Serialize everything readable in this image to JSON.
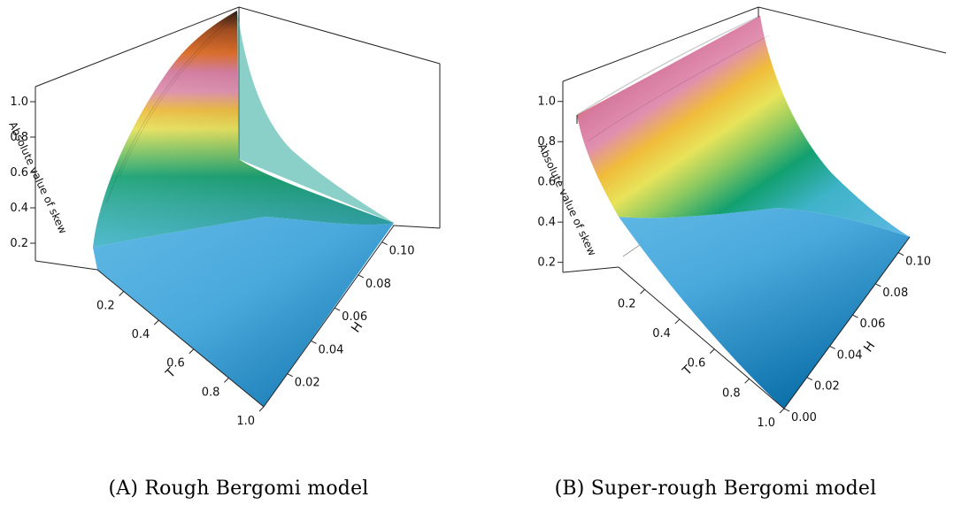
{
  "figure": {
    "panels": [
      {
        "tag": "(A)",
        "caption": "Rough Bergomi model"
      },
      {
        "tag": "(B)",
        "caption": "Super-rough Bergomi model"
      }
    ]
  },
  "chart_data": [
    {
      "type": "surface",
      "title": "",
      "zlabel": "Absolute value of skew",
      "xlabel": "T",
      "ylabel": "H",
      "x_ticks": [
        "0.2",
        "0.4",
        "0.6",
        "0.8",
        "1.0"
      ],
      "y_ticks": [
        "0.02",
        "0.04",
        "0.06",
        "0.08",
        "0.10"
      ],
      "z_ticks": [
        "0.2",
        "0.4",
        "0.6",
        "0.8",
        "1.0"
      ],
      "xlim": [
        0.05,
        1.0
      ],
      "ylim": [
        0.0,
        0.11
      ],
      "zlim": [
        0.15,
        1.1
      ],
      "surface": {
        "x": [
          0.05,
          0.2,
          0.4,
          0.6,
          0.8,
          1.0
        ],
        "y": [
          0.0,
          0.02,
          0.04,
          0.06,
          0.08,
          0.1
        ],
        "z_rows_by_H": [
          [
            1.05,
            0.55,
            0.38,
            0.3,
            0.26,
            0.24
          ],
          [
            0.92,
            0.5,
            0.36,
            0.29,
            0.25,
            0.23
          ],
          [
            0.82,
            0.46,
            0.34,
            0.28,
            0.25,
            0.23
          ],
          [
            0.72,
            0.43,
            0.33,
            0.28,
            0.24,
            0.23
          ],
          [
            0.64,
            0.4,
            0.32,
            0.27,
            0.24,
            0.22
          ],
          [
            0.56,
            0.37,
            0.3,
            0.26,
            0.23,
            0.22
          ]
        ]
      },
      "colors": [
        "#0a6ea8",
        "#3397d0",
        "#5fb8e4",
        "#3fb3c9",
        "#2aa89a",
        "#12a070",
        "#8fca60",
        "#e8e35a",
        "#f0bc3a",
        "#e08fb0",
        "#d77aa0",
        "#e06a20",
        "#a04414",
        "#231208"
      ]
    },
    {
      "type": "surface",
      "title": "",
      "zlabel": "Absolute value of skew",
      "xlabel": "T",
      "ylabel": "H",
      "x_ticks": [
        "0.2",
        "0.4",
        "0.6",
        "0.8",
        "1.0"
      ],
      "y_ticks": [
        "0.00",
        "0.02",
        "0.04",
        "0.06",
        "0.08",
        "0.10"
      ],
      "z_ticks": [
        "0.2",
        "0.4",
        "0.6",
        "0.8",
        "1.0"
      ],
      "xlim": [
        0.05,
        1.0
      ],
      "ylim": [
        0.0,
        0.11
      ],
      "zlim": [
        0.15,
        1.1
      ],
      "surface": {
        "x": [
          0.05,
          0.2,
          0.4,
          0.6,
          0.8,
          1.0
        ],
        "y": [
          0.0,
          0.02,
          0.04,
          0.06,
          0.08,
          0.1
        ],
        "z_rows_by_H": [
          [
            1.05,
            1.0,
            0.98,
            0.96,
            0.95,
            0.94
          ],
          [
            0.9,
            0.84,
            0.81,
            0.8,
            0.79,
            0.78
          ],
          [
            0.7,
            0.62,
            0.58,
            0.56,
            0.55,
            0.54
          ],
          [
            0.5,
            0.42,
            0.38,
            0.36,
            0.35,
            0.34
          ],
          [
            0.36,
            0.29,
            0.26,
            0.25,
            0.24,
            0.23
          ],
          [
            0.3,
            0.24,
            0.22,
            0.21,
            0.2,
            0.2
          ]
        ]
      },
      "colors": [
        "#0a6ea8",
        "#3397d0",
        "#5fb8e4",
        "#3fb3c9",
        "#2aa89a",
        "#12a070",
        "#8fca60",
        "#e8e35a",
        "#f0bc3a",
        "#e08fb0",
        "#d77aa0",
        "#e06a20",
        "#a04414",
        "#231208"
      ]
    }
  ]
}
